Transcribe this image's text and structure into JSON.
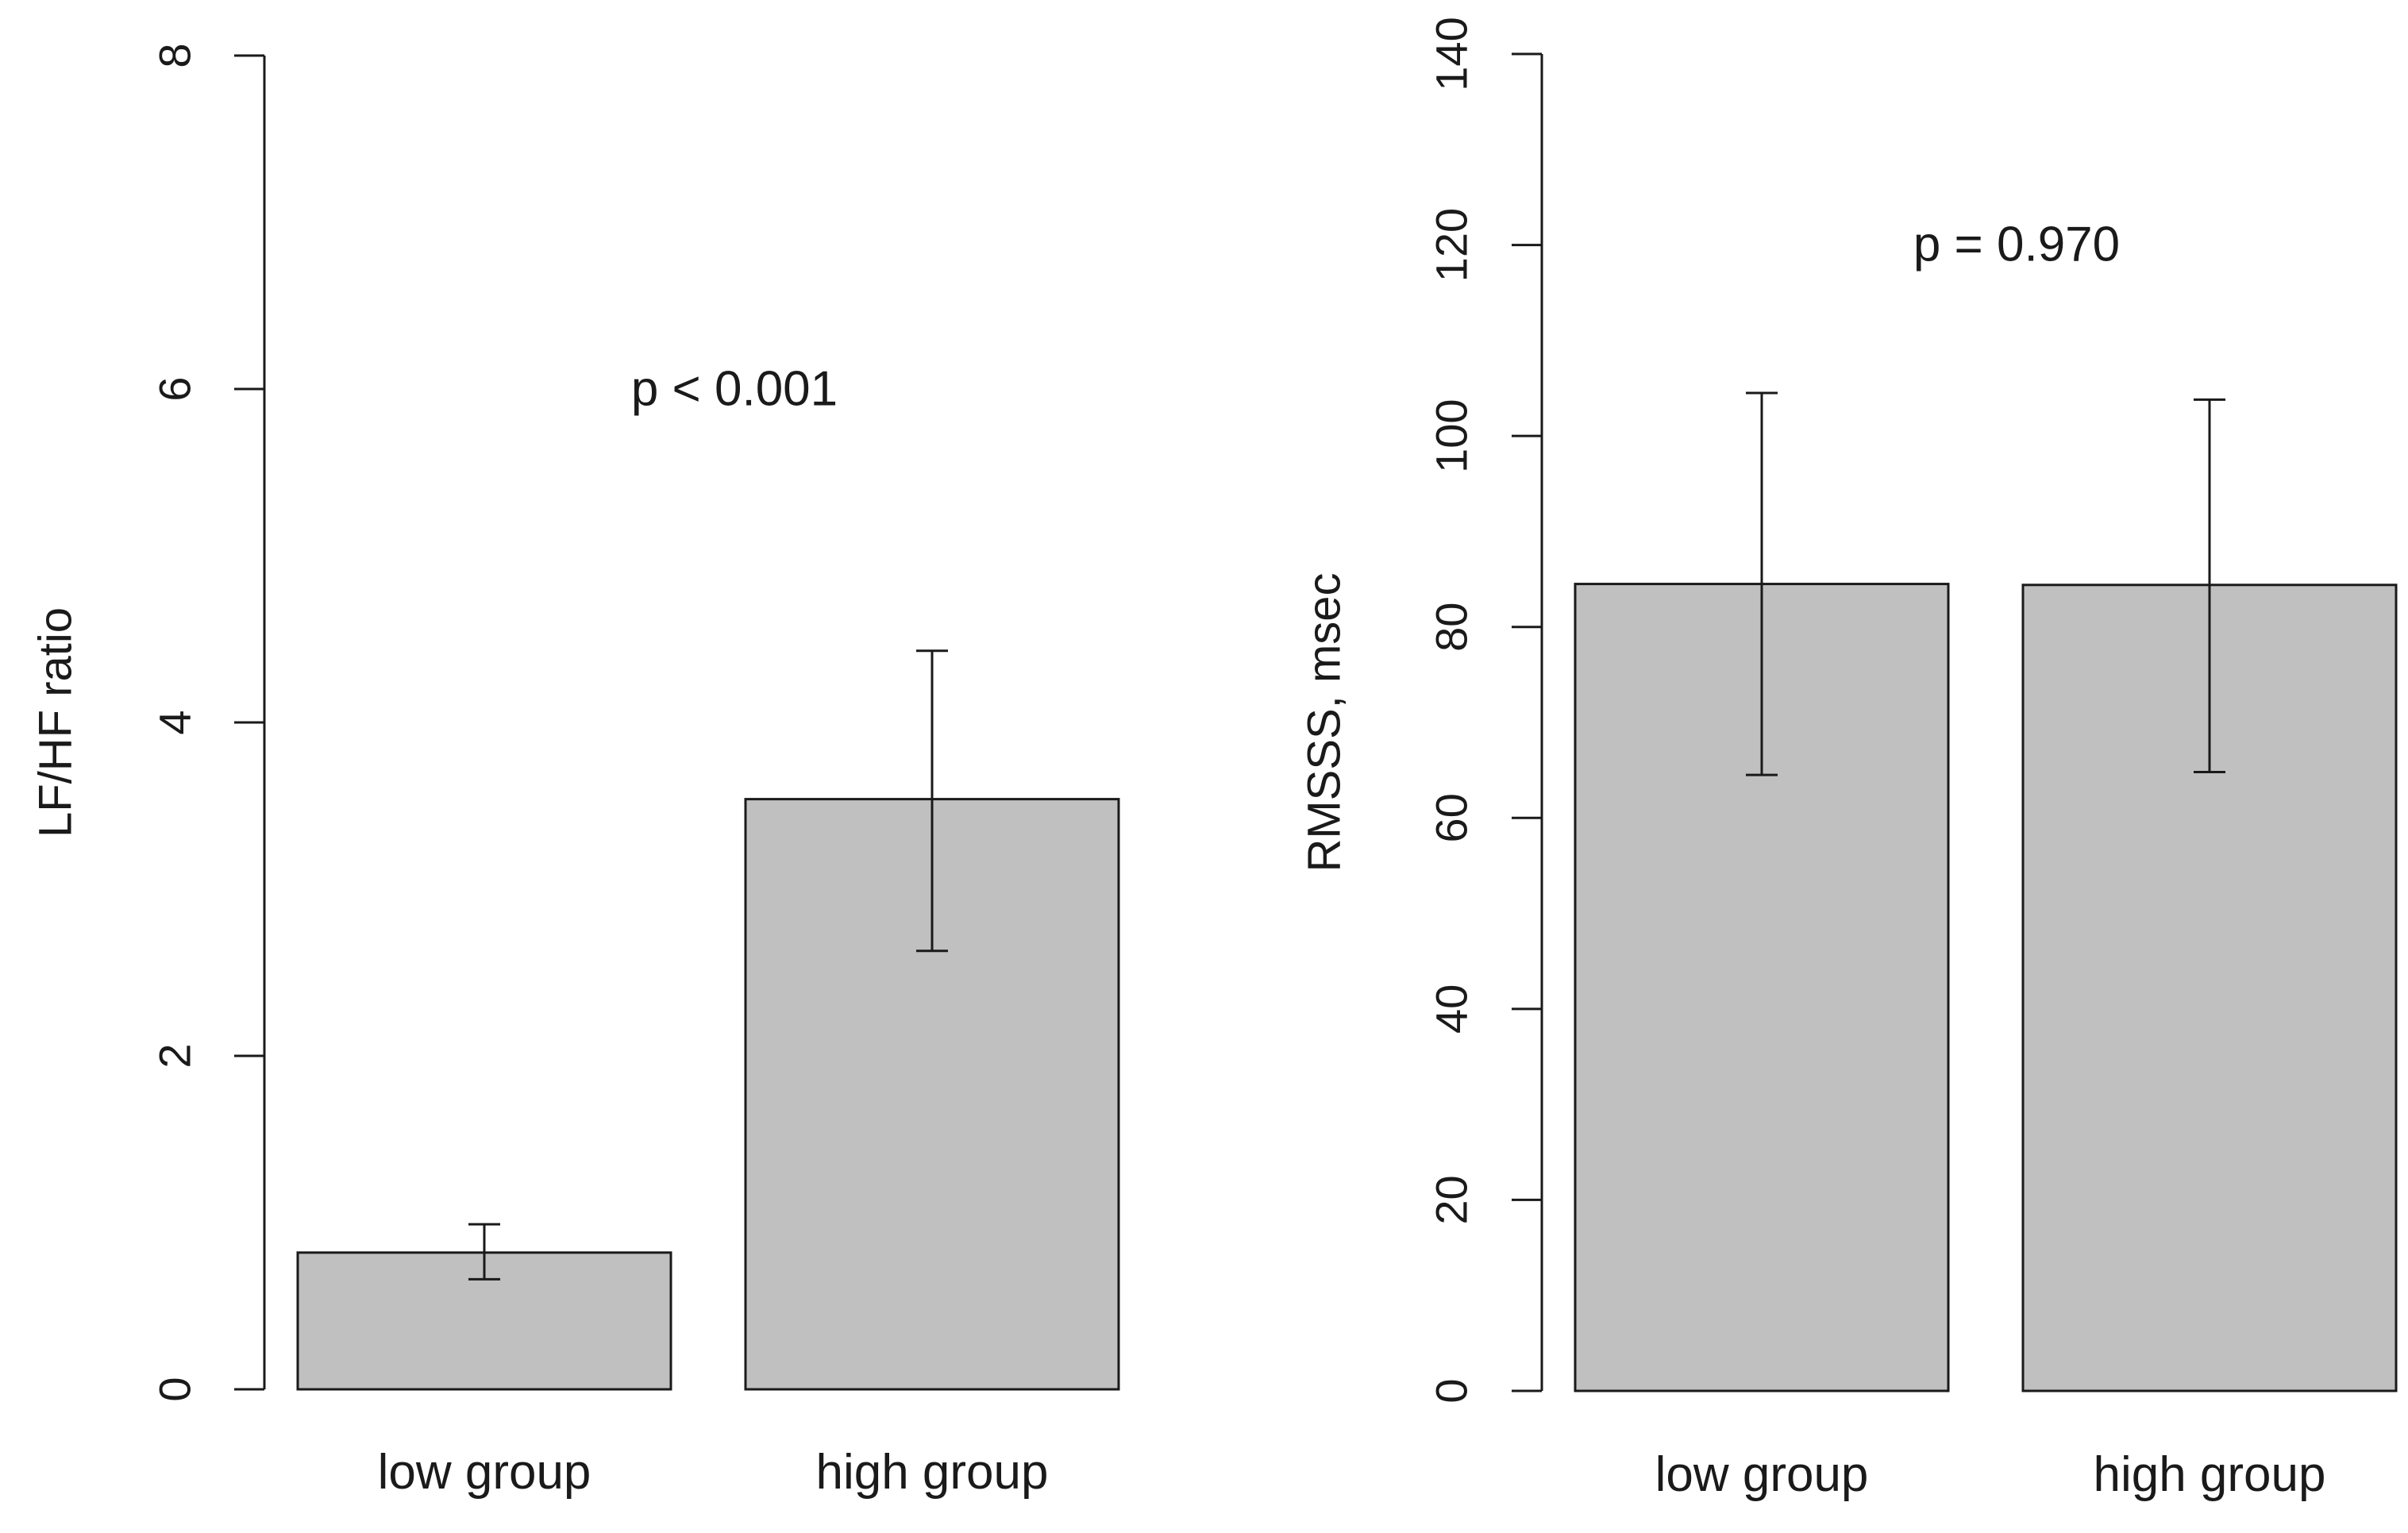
{
  "chart_data": [
    {
      "type": "bar",
      "title": "",
      "xlabel": "",
      "ylabel": "LF/HF ratio",
      "ylim": [
        0,
        8
      ],
      "yticks": [
        0,
        2,
        4,
        6,
        8
      ],
      "grid": false,
      "categories": [
        "low group",
        "high group"
      ],
      "values": [
        0.82,
        3.54
      ],
      "error_low": [
        0.66,
        2.63
      ],
      "error_high": [
        0.99,
        4.43
      ],
      "bar_color": "#c0c0c0",
      "annotation": "p < 0.001"
    },
    {
      "type": "bar",
      "title": "",
      "xlabel": "",
      "ylabel": "RMSSS, msec",
      "ylim": [
        0,
        140
      ],
      "yticks": [
        0,
        20,
        40,
        60,
        80,
        100,
        120,
        140
      ],
      "grid": false,
      "categories": [
        "low group",
        "high group"
      ],
      "values": [
        84.5,
        84.4
      ],
      "error_low": [
        64.5,
        64.8
      ],
      "error_high": [
        104.5,
        103.8
      ],
      "bar_color": "#c0c0c0",
      "annotation": "p = 0.970"
    }
  ]
}
